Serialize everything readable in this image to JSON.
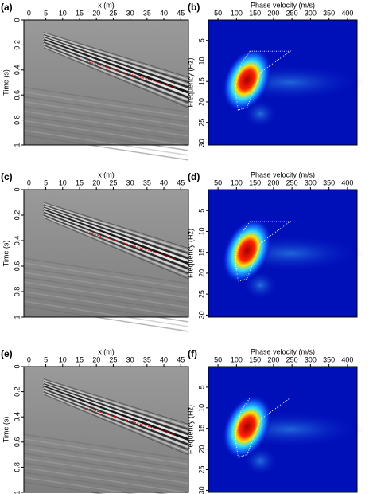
{
  "chart_data": [
    {
      "type": "image",
      "panel": "(a)",
      "xlabel": "x (m)",
      "ylabel": "Time (s)",
      "xlim": [
        -1.5,
        47.3
      ],
      "xticks": [
        0,
        5,
        10,
        15,
        20,
        25,
        30,
        35,
        40,
        45
      ],
      "ylim": [
        1,
        0
      ],
      "yticks": [
        0,
        0.2,
        0.4,
        0.6,
        0.8,
        1
      ]
    },
    {
      "type": "spectrum",
      "panel": "(b)",
      "xlabel": "Phase velocity (m/s)",
      "ylabel": "Frequency (Hz)",
      "xlim": [
        24,
        426
      ],
      "xticks": [
        50,
        100,
        150,
        200,
        250,
        300,
        350,
        400
      ],
      "ylim": [
        30.5,
        0
      ],
      "yticks": [
        5,
        10,
        15,
        20,
        25,
        30
      ]
    },
    {
      "type": "image",
      "panel": "(c)",
      "xlabel": "x (m)",
      "ylabel": "Time (s)",
      "xlim": [
        -1.5,
        47.3
      ],
      "xticks": [
        0,
        5,
        10,
        15,
        20,
        25,
        30,
        35,
        40,
        45
      ],
      "ylim": [
        1,
        0
      ],
      "yticks": [
        0,
        0.2,
        0.4,
        0.6,
        0.8,
        1
      ]
    },
    {
      "type": "spectrum",
      "panel": "(d)",
      "xlabel": "Phase velocity (m/s)",
      "ylabel": "Frequency (Hz)",
      "xlim": [
        24,
        426
      ],
      "xticks": [
        50,
        100,
        150,
        200,
        250,
        300,
        350,
        400
      ],
      "ylim": [
        30.5,
        0
      ],
      "yticks": [
        5,
        10,
        15,
        20,
        25,
        30
      ]
    },
    {
      "type": "image",
      "panel": "(e)",
      "xlabel": "x (m)",
      "ylabel": "Time (s)",
      "xlim": [
        -1.5,
        47.3
      ],
      "xticks": [
        0,
        5,
        10,
        15,
        20,
        25,
        30,
        35,
        40,
        45
      ],
      "ylim": [
        1,
        0
      ],
      "yticks": [
        0,
        0.2,
        0.4,
        0.6,
        0.8,
        1
      ]
    },
    {
      "type": "spectrum",
      "panel": "(f)",
      "xlabel": "Phase velocity (m/s)",
      "ylabel": "Frequency (Hz)",
      "xlim": [
        24,
        426
      ],
      "xticks": [
        50,
        100,
        150,
        200,
        250,
        300,
        350,
        400
      ],
      "ylim": [
        30.5,
        0
      ],
      "yticks": [
        5,
        10,
        15,
        20,
        25,
        30
      ]
    }
  ]
}
